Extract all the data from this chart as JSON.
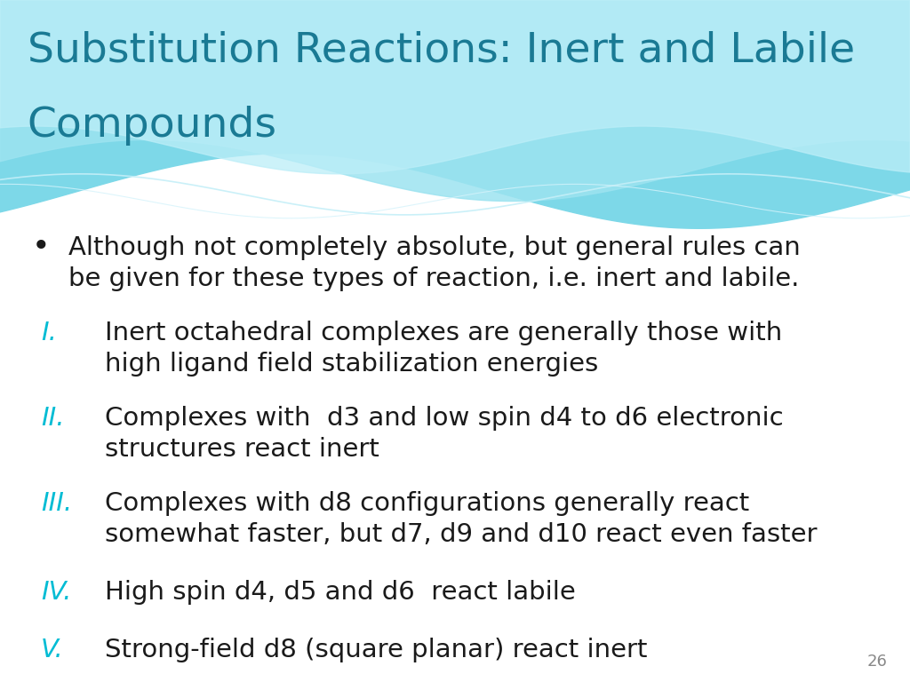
{
  "title_line1": "Substitution Reactions: Inert and Labile",
  "title_line2": "Compounds",
  "title_color": "#1a7a94",
  "background_color": "#ffffff",
  "bullet_color": "#1a1a1a",
  "roman_color": "#00bcd4",
  "bullet_dot_color": "#1a1a1a",
  "slide_number": "26",
  "bullet_text": "Although not completely absolute, but general rules can\nbe given for these types of reaction, i.e. inert and labile.",
  "numbered_items": [
    {
      "numeral": "I.",
      "text": "Inert octahedral complexes are generally those with\nhigh ligand field stabilization energies"
    },
    {
      "numeral": "II.",
      "text": "Complexes with  d3 and low spin d4 to d6 electronic\nstructures react inert"
    },
    {
      "numeral": "III.",
      "text": "Complexes with d8 configurations generally react\nsomewhat faster, but d7, d9 and d10 react even faster"
    },
    {
      "numeral": "IV.",
      "text": "High spin d4, d5 and d6  react labile"
    },
    {
      "numeral": "V.",
      "text": "Strong-field d8 (square planar) react inert"
    }
  ],
  "title_fontsize": 34,
  "body_fontsize": 21,
  "numeral_fontsize": 21,
  "slide_num_fontsize": 13
}
